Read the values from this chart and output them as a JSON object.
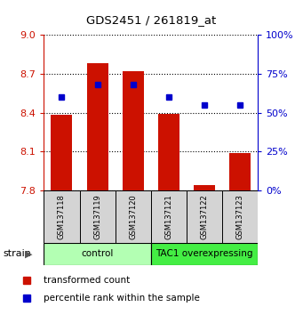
{
  "title": "GDS2451 / 261819_at",
  "samples": [
    "GSM137118",
    "GSM137119",
    "GSM137120",
    "GSM137121",
    "GSM137122",
    "GSM137123"
  ],
  "red_values": [
    8.38,
    8.78,
    8.72,
    8.39,
    7.84,
    8.09
  ],
  "blue_values_pct": [
    60,
    68,
    68,
    60,
    55,
    55
  ],
  "ylim_left": [
    7.8,
    9.0
  ],
  "yticks_left": [
    7.8,
    8.1,
    8.4,
    8.7,
    9.0
  ],
  "ylim_right": [
    0,
    100
  ],
  "yticks_right": [
    0,
    25,
    50,
    75,
    100
  ],
  "groups": [
    {
      "label": "control",
      "indices": [
        0,
        1,
        2
      ],
      "color": "#b3ffb3"
    },
    {
      "label": "TAC1 overexpressing",
      "indices": [
        3,
        4,
        5
      ],
      "color": "#44ee44"
    }
  ],
  "bar_color": "#cc1100",
  "dot_color": "#0000cc",
  "bar_bottom": 7.8,
  "legend_red": "transformed count",
  "legend_blue": "percentile rank within the sample",
  "strain_label": "strain",
  "tick_color_left": "#cc1100",
  "tick_color_right": "#0000cc",
  "bar_width": 0.6,
  "bg_color": "#d4d4d4"
}
